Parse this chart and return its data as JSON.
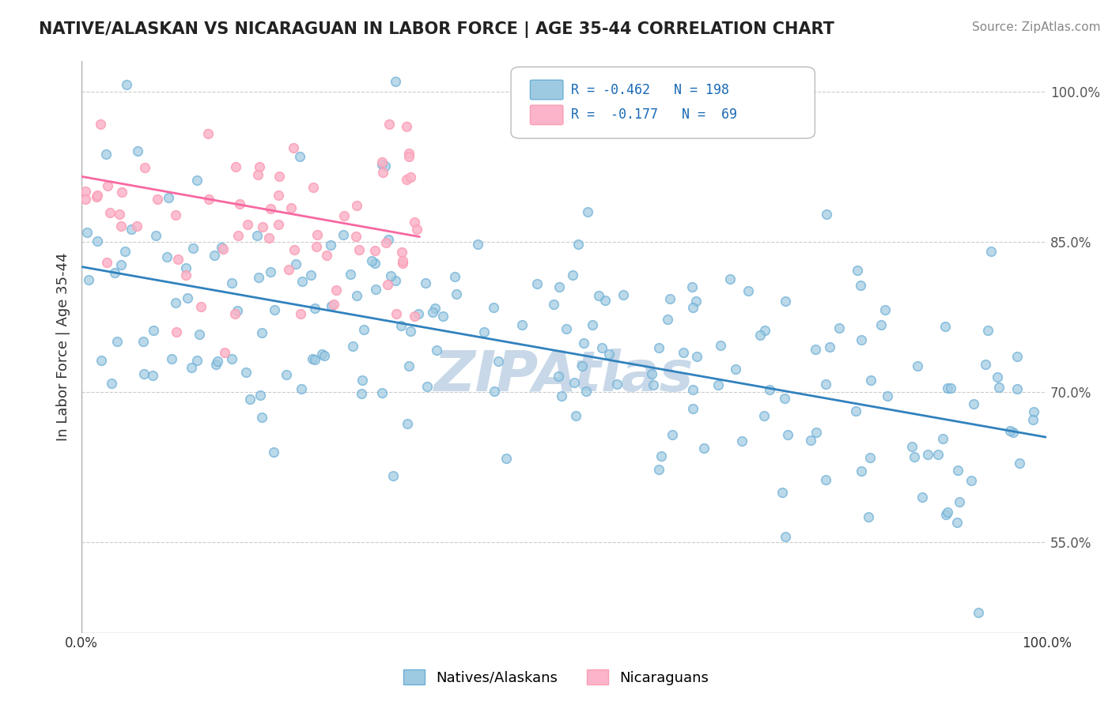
{
  "title": "NATIVE/ALASKAN VS NICARAGUAN IN LABOR FORCE | AGE 35-44 CORRELATION CHART",
  "source_text": "Source: ZipAtlas.com",
  "ylabel": "In Labor Force | Age 35-44",
  "xmin": 0.0,
  "xmax": 1.0,
  "ymin": 0.46,
  "ymax": 1.03,
  "yticks": [
    0.55,
    0.7,
    0.85,
    1.0
  ],
  "ytick_labels": [
    "55.0%",
    "70.0%",
    "85.0%",
    "100.0%"
  ],
  "xtick_labels": [
    "0.0%",
    "100.0%"
  ],
  "blue_R": -0.462,
  "blue_N": 198,
  "pink_R": -0.177,
  "pink_N": 69,
  "blue_edge_color": "#6baed6",
  "pink_edge_color": "#fa9fb5",
  "blue_scatter_color": "#9ecae1",
  "pink_scatter_color": "#fbb4c9",
  "blue_line_color": "#3182bd",
  "pink_line_color": "#f768a1",
  "watermark_color": "#c8d8e8",
  "background_color": "#ffffff",
  "grid_color": "#cccccc",
  "legend_label_blue": "Natives/Alaskans",
  "legend_label_pink": "Nicaraguans",
  "blue_trend_x": [
    0.0,
    1.0
  ],
  "blue_trend_y": [
    0.825,
    0.655
  ],
  "pink_trend_x": [
    0.0,
    0.35
  ],
  "pink_trend_y": [
    0.915,
    0.855
  ]
}
